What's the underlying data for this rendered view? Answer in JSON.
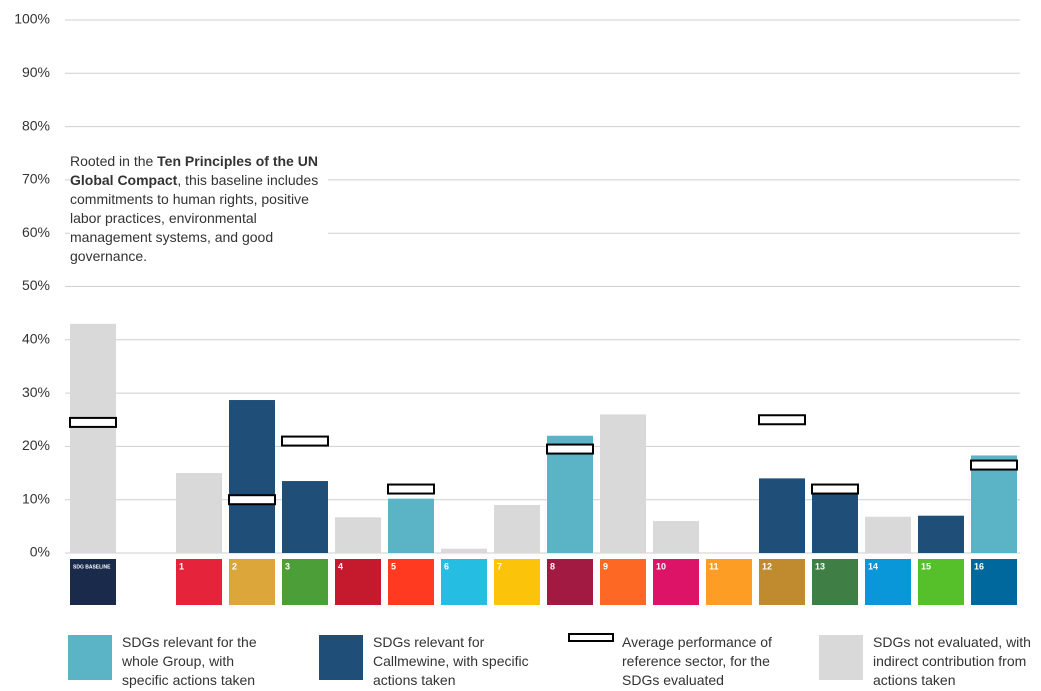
{
  "chart_data": {
    "type": "bar",
    "categories": [
      "SDG BASELINE",
      null,
      "1",
      "2",
      "3",
      "4",
      "5",
      "6",
      "7",
      "8",
      "9",
      "10",
      "11",
      "12",
      "13",
      "14",
      "15",
      "16"
    ],
    "icon_colors": [
      "#1a2a4a",
      null,
      "#e5243b",
      "#dda63a",
      "#4c9f38",
      "#c5192d",
      "#ff3a21",
      "#26bde2",
      "#fcc30b",
      "#a21942",
      "#fd6925",
      "#dd1367",
      "#fd9d24",
      "#bf8b2e",
      "#3f7e44",
      "#0a97d9",
      "#56c02b",
      "#00689d"
    ],
    "series": [
      {
        "name": "SDGs relevant for the whole Group, with specific actions taken",
        "color": "#5ab4c5",
        "values": [
          null,
          null,
          null,
          null,
          null,
          null,
          10.2,
          null,
          null,
          22,
          null,
          null,
          null,
          null,
          null,
          null,
          null,
          18.3
        ]
      },
      {
        "name": "SDGs relevant for Callmewine, with specific actions taken",
        "color": "#1f4e79",
        "values": [
          null,
          null,
          null,
          28.7,
          13.5,
          null,
          null,
          null,
          null,
          null,
          null,
          null,
          null,
          14,
          11.3,
          null,
          7,
          null
        ]
      },
      {
        "name": "Average performance of reference sector, for the SDGs evaluated",
        "color": "#000000",
        "marker": "outline",
        "values": [
          24.5,
          null,
          null,
          10,
          21,
          null,
          12,
          null,
          null,
          19.5,
          null,
          null,
          null,
          25,
          12,
          null,
          null,
          16.5
        ]
      },
      {
        "name": "SDGs not evaluated, with indirect contribution from actions taken",
        "color": "#d9d9d9",
        "values": [
          43,
          null,
          15,
          null,
          null,
          6.7,
          null,
          0.8,
          9,
          null,
          26,
          6,
          0,
          null,
          null,
          6.8,
          null,
          null
        ]
      }
    ],
    "ylim": [
      0,
      100
    ],
    "yticks": [
      {
        "value": 0,
        "label": "0%"
      },
      {
        "value": 10,
        "label": "10%"
      },
      {
        "value": 20,
        "label": "20%"
      },
      {
        "value": 30,
        "label": "30%"
      },
      {
        "value": 40,
        "label": "40%"
      },
      {
        "value": 50,
        "label": "50%"
      },
      {
        "value": 60,
        "label": "60%"
      },
      {
        "value": 70,
        "label": "70%"
      },
      {
        "value": 80,
        "label": "80%"
      },
      {
        "value": 90,
        "label": "90%"
      },
      {
        "value": 100,
        "label": "100%"
      }
    ],
    "grid": true,
    "annotation": {
      "before": "Rooted in the ",
      "bold": "Ten Principles of the UN Global Compact",
      "after": ", this baseline includes commitments to human rights, positive labor practices, environmental management systems, and good governance."
    }
  }
}
